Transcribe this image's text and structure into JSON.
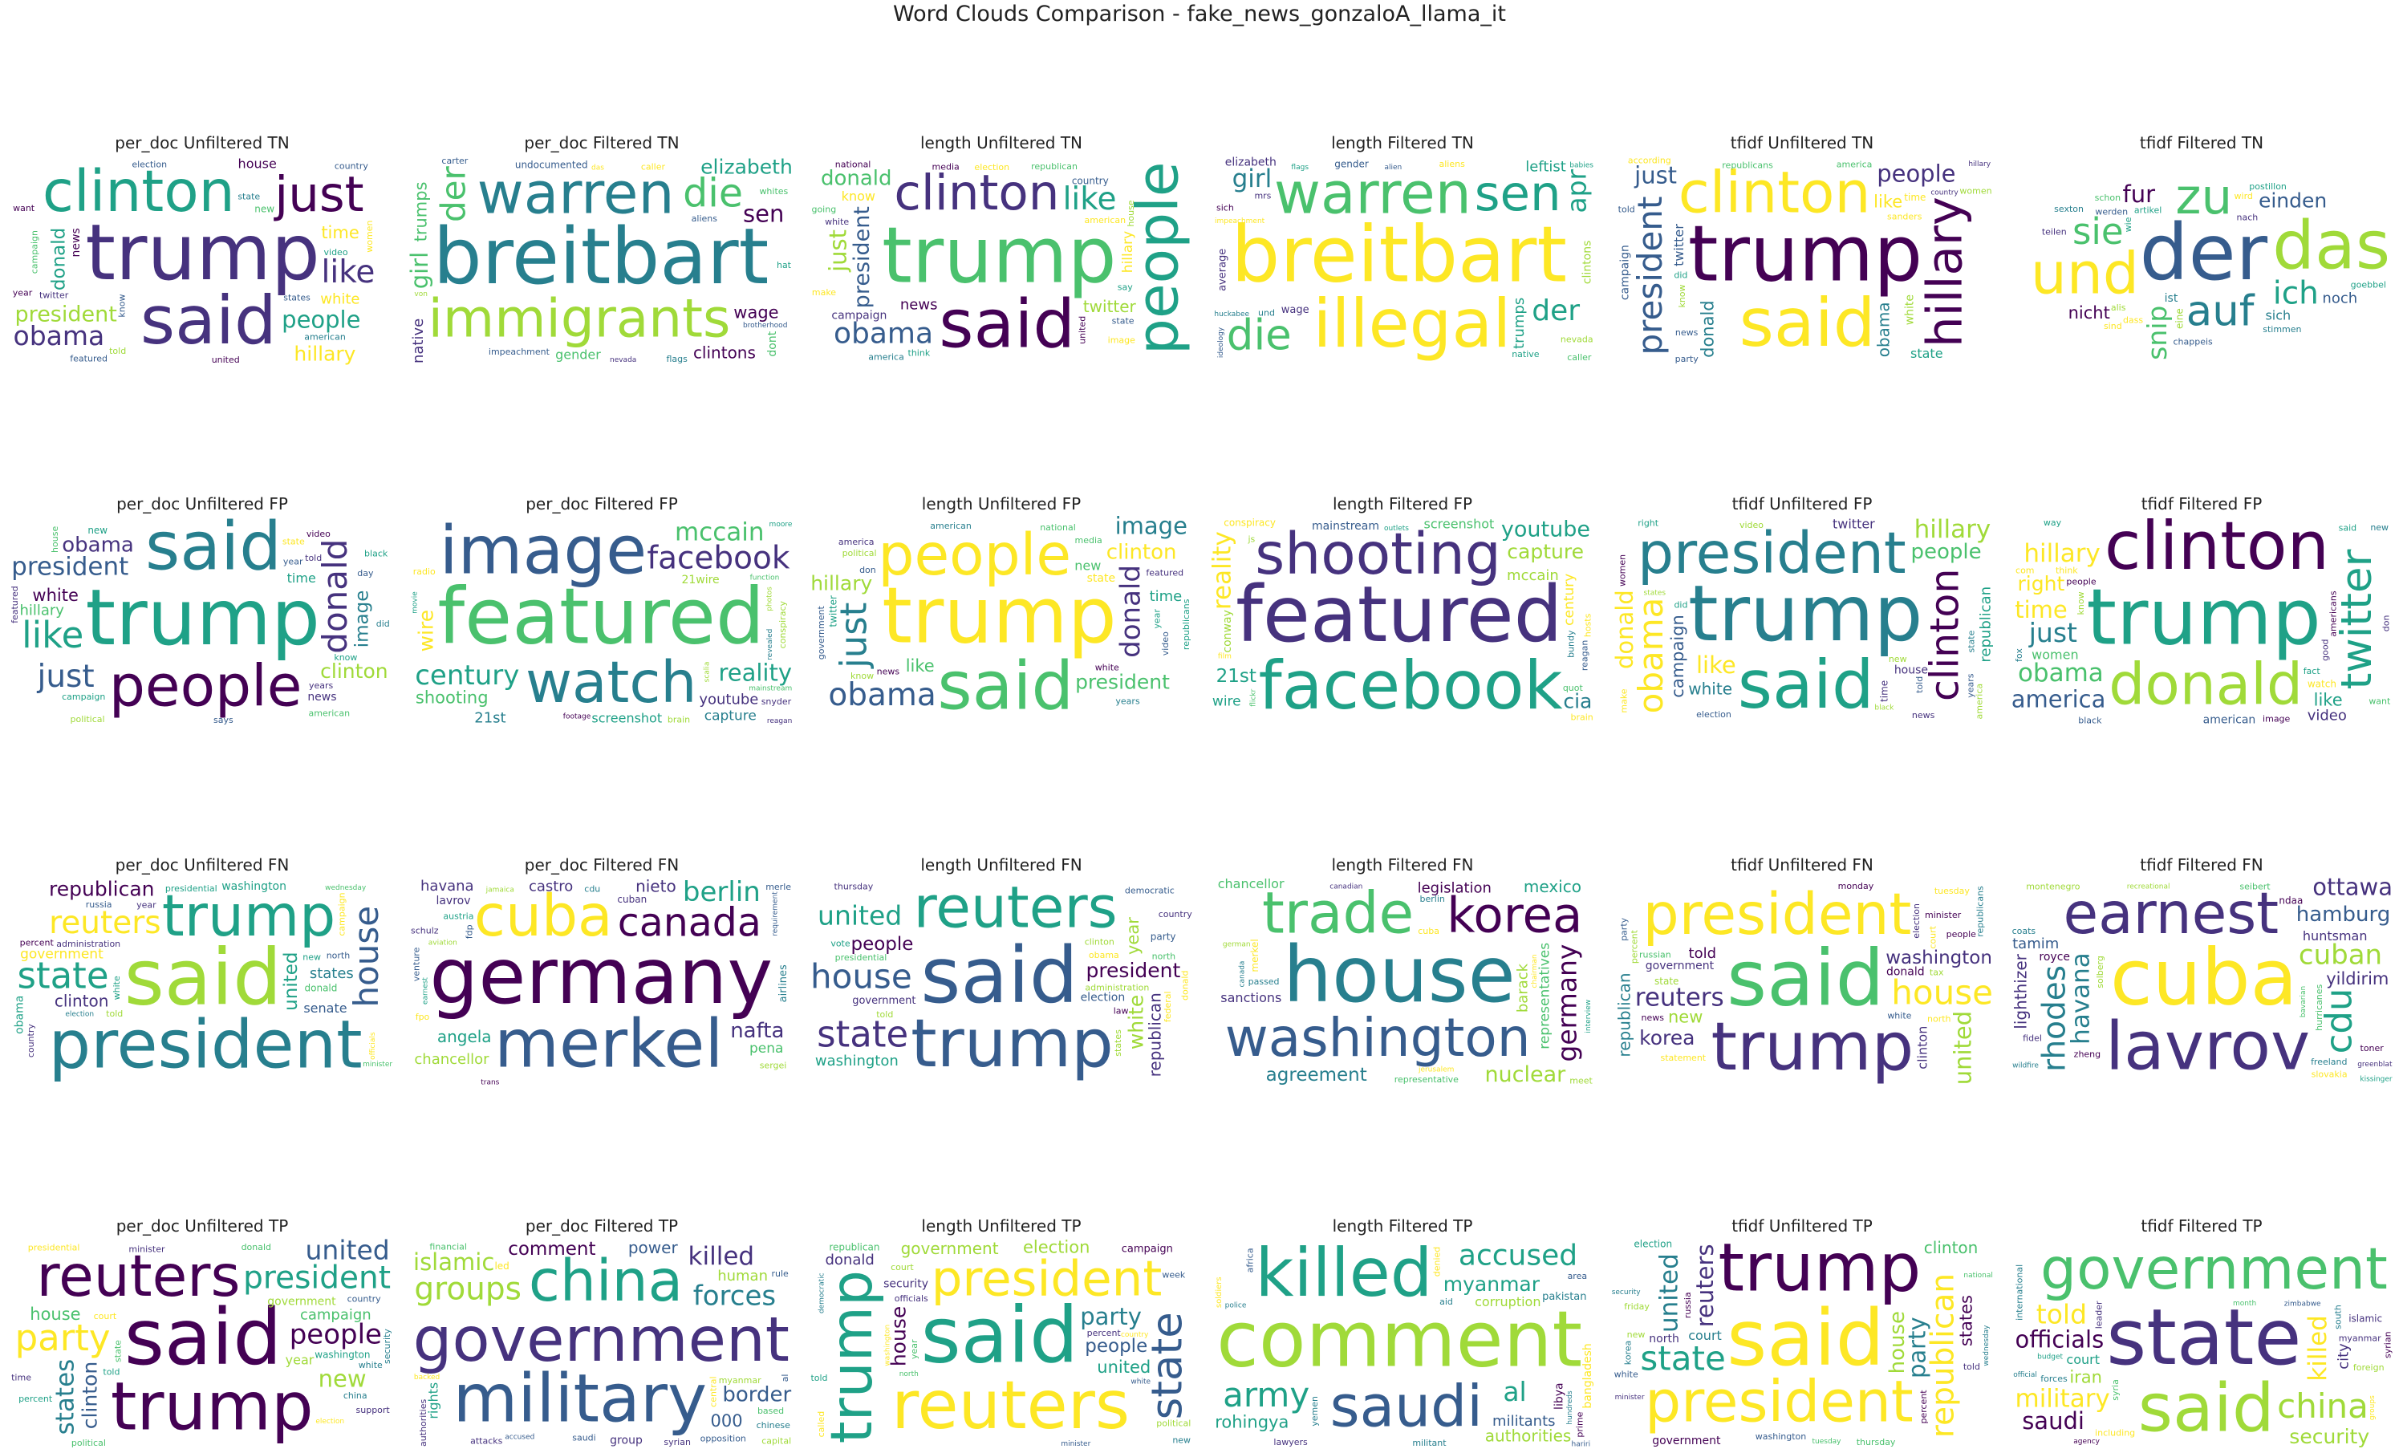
{
  "title": "Word Clouds Comparison - fake_news_gonzaloA_llama_it",
  "palette": [
    "#440154",
    "#46327e",
    "#365c8d",
    "#277f8e",
    "#1fa187",
    "#4ac16d",
    "#a0da39",
    "#fde725"
  ],
  "chart_data": [
    {
      "type": "wordcloud",
      "title": "per_doc Unfiltered TN",
      "words": [
        "trump",
        "said",
        "clinton",
        "just",
        "president",
        "people",
        "like",
        "obama",
        "donald",
        "hillary",
        "time",
        "white",
        "house",
        "news",
        "new",
        "states",
        "twitter",
        "state",
        "video",
        "campaign",
        "american",
        "featured",
        "country",
        "year",
        "know",
        "election",
        "united",
        "women",
        "told",
        "want"
      ]
    },
    {
      "type": "wordcloud",
      "title": "per_doc Filtered TN",
      "words": [
        "breitbart",
        "immigrants",
        "warren",
        "die",
        "der",
        "sen",
        "clintons",
        "wage",
        "girl",
        "elizabeth",
        "trumps",
        "native",
        "gender",
        "dont",
        "undocumented",
        "aliens",
        "caller",
        "hat",
        "impeachment",
        "nevada",
        "whites",
        "flags",
        "brotherhood",
        "carter",
        "das",
        "von"
      ]
    },
    {
      "type": "wordcloud",
      "title": "length Unfiltered TN",
      "words": [
        "trump",
        "said",
        "people",
        "clinton",
        "president",
        "obama",
        "like",
        "donald",
        "just",
        "twitter",
        "hillary",
        "news",
        "know",
        "campaign",
        "country",
        "american",
        "house",
        "state",
        "white",
        "election",
        "media",
        "republican",
        "national",
        "united",
        "say",
        "make",
        "think",
        "america",
        "going",
        "image"
      ]
    },
    {
      "type": "wordcloud",
      "title": "length Filtered TN",
      "words": [
        "breitbart",
        "illegal",
        "warren",
        "sen",
        "die",
        "der",
        "girl",
        "apr",
        "trumps",
        "average",
        "clintons",
        "leftist",
        "wage",
        "elizabeth",
        "gender",
        "mrs",
        "aliens",
        "native",
        "impeachment",
        "und",
        "nevada",
        "babies",
        "ideology",
        "brotherhood",
        "caller",
        "sich",
        "huckabee",
        "flags",
        "applause",
        "alien"
      ]
    },
    {
      "type": "wordcloud",
      "title": "tfidf Unfiltered TN",
      "words": [
        "trump",
        "said",
        "clinton",
        "hillary",
        "president",
        "people",
        "obama",
        "donald",
        "just",
        "twitter",
        "like",
        "white",
        "state",
        "campaign",
        "time",
        "sanders",
        "news",
        "republicans",
        "america",
        "women",
        "know",
        "according",
        "country",
        "told",
        "party",
        "did",
        "hillary"
      ]
    },
    {
      "type": "wordcloud",
      "title": "tfidf Filtered TN",
      "words": [
        "der",
        "das",
        "und",
        "zu",
        "auf",
        "sie",
        "ich",
        "snip",
        "fur",
        "einden",
        "nicht",
        "noch",
        "sich",
        "ist",
        "eine",
        "wird",
        "wie",
        "alis",
        "nach",
        "artikel",
        "dass",
        "postillon",
        "teilen",
        "stimmen",
        "werden",
        "schon",
        "chappeis",
        "sind",
        "sexton",
        "goebbel"
      ]
    },
    {
      "type": "wordcloud",
      "title": "per_doc Unfiltered FP",
      "words": [
        "trump",
        "said",
        "people",
        "president",
        "donald",
        "like",
        "just",
        "obama",
        "image",
        "clinton",
        "white",
        "hillary",
        "time",
        "news",
        "new",
        "years",
        "year",
        "day",
        "says",
        "state",
        "campaign",
        "told",
        "video",
        "did",
        "featured",
        "american",
        "house",
        "black",
        "know",
        "political"
      ]
    },
    {
      "type": "wordcloud",
      "title": "per_doc Filtered FP",
      "words": [
        "featured",
        "image",
        "watch",
        "facebook",
        "century",
        "reality",
        "mccain",
        "shooting",
        "youtube",
        "wire",
        "capture",
        "21st",
        "screenshot",
        "21wire",
        "mainstream",
        "conspiracy",
        "snyder",
        "brain",
        "footage",
        "scalia",
        "radio",
        "moore",
        "revealed",
        "function",
        "reagan",
        "photos",
        "movie"
      ]
    },
    {
      "type": "wordcloud",
      "title": "length Unfiltered FP",
      "words": [
        "trump",
        "said",
        "people",
        "president",
        "donald",
        "just",
        "obama",
        "clinton",
        "image",
        "hillary",
        "like",
        "time",
        "new",
        "state",
        "twitter",
        "year",
        "video",
        "news",
        "white",
        "featured",
        "american",
        "know",
        "media",
        "government",
        "republicans",
        "political",
        "national",
        "years",
        "don",
        "america"
      ]
    },
    {
      "type": "wordcloud",
      "title": "length Filtered FP",
      "words": [
        "featured",
        "facebook",
        "shooting",
        "capture",
        "youtube",
        "mccain",
        "reality",
        "century",
        "21st",
        "cia",
        "wire",
        "mainstream",
        "screenshot",
        "conway",
        "conspiracy",
        "brain",
        "quot",
        "bundy",
        "hosts",
        "reagan",
        "function",
        "flickr",
        "segment",
        "shooter",
        "outlets",
        "analysis",
        "film",
        "rich",
        "id",
        "js"
      ]
    },
    {
      "type": "wordcloud",
      "title": "tfidf Unfiltered FP",
      "words": [
        "trump",
        "said",
        "president",
        "clinton",
        "obama",
        "donald",
        "hillary",
        "people",
        "like",
        "white",
        "campaign",
        "republican",
        "twitter",
        "house",
        "time",
        "america",
        "state",
        "new",
        "video",
        "election",
        "women",
        "news",
        "right",
        "black",
        "make",
        "years",
        "told",
        "did",
        "states",
        "know"
      ]
    },
    {
      "type": "wordcloud",
      "title": "tfidf Filtered FP",
      "words": [
        "trump",
        "clinton",
        "donald",
        "obama",
        "twitter",
        "america",
        "hillary",
        "just",
        "time",
        "right",
        "like",
        "video",
        "women",
        "american",
        "watch",
        "people",
        "americans",
        "know",
        "image",
        "fact",
        "think",
        "black",
        "said",
        "good",
        "want",
        "don",
        "fox",
        "com",
        "way",
        "new"
      ]
    },
    {
      "type": "wordcloud",
      "title": "per_doc Unfiltered FN",
      "words": [
        "said",
        "president",
        "trump",
        "reuters",
        "house",
        "state",
        "republican",
        "government",
        "united",
        "clinton",
        "washington",
        "states",
        "senate",
        "obama",
        "donald",
        "administration",
        "north",
        "year",
        "told",
        "white",
        "election",
        "campaign",
        "percent",
        "russia",
        "new",
        "country",
        "presidential",
        "officials",
        "minister",
        "wednesday"
      ]
    },
    {
      "type": "wordcloud",
      "title": "per_doc Filtered FN",
      "words": [
        "germany",
        "merkel",
        "cuba",
        "canada",
        "berlin",
        "chancellor",
        "angela",
        "nafta",
        "havana",
        "nieto",
        "pena",
        "castro",
        "airlines",
        "lavrov",
        "cuban",
        "fdp",
        "austria",
        "sergei",
        "schulz",
        "earnest",
        "requirement",
        "cdu",
        "trans",
        "venture",
        "jamaica",
        "aviation",
        "fpo",
        "merle"
      ]
    },
    {
      "type": "wordcloud",
      "title": "length Unfiltered FN",
      "words": [
        "said",
        "trump",
        "reuters",
        "president",
        "house",
        "state",
        "republican",
        "united",
        "people",
        "white",
        "year",
        "washington",
        "government",
        "election",
        "party",
        "obama",
        "administration",
        "north",
        "federal",
        "told",
        "states",
        "vote",
        "democratic",
        "presidential",
        "clinton",
        "donald",
        "thursday",
        "country",
        "law"
      ]
    },
    {
      "type": "wordcloud",
      "title": "length Filtered FN",
      "words": [
        "house",
        "washington",
        "trade",
        "korea",
        "nuclear",
        "agreement",
        "sanctions",
        "germany",
        "legislation",
        "mexico",
        "representatives",
        "barack",
        "chancellor",
        "representative",
        "merkel",
        "jerusalem",
        "passed",
        "cuba",
        "berlin",
        "canada",
        "german",
        "canadian",
        "meet",
        "progress",
        "measure",
        "chairman",
        "introduced",
        "interview"
      ]
    },
    {
      "type": "wordcloud",
      "title": "tfidf Unfiltered FN",
      "words": [
        "said",
        "trump",
        "president",
        "reuters",
        "house",
        "washington",
        "republican",
        "government",
        "united",
        "korea",
        "new",
        "told",
        "clinton",
        "donald",
        "state",
        "percent",
        "election",
        "tax",
        "people",
        "statement",
        "court",
        "minister",
        "russian",
        "white",
        "north",
        "party",
        "monday",
        "tuesday",
        "republicans",
        "news"
      ]
    },
    {
      "type": "wordcloud",
      "title": "tfidf Filtered FN",
      "words": [
        "cuba",
        "lavrov",
        "earnest",
        "havana",
        "cuban",
        "cdu",
        "rhodes",
        "hamburg",
        "ottawa",
        "lighthizer",
        "yildirim",
        "tamim",
        "huntsman",
        "royce",
        "ndaa",
        "seibert",
        "montenegro",
        "freeland",
        "solberg",
        "slovakia",
        "bavarian",
        "recreational",
        "zheng",
        "hurricanes",
        "toner",
        "fidel",
        "greenblat",
        "kissinger",
        "wildfire",
        "coats"
      ]
    },
    {
      "type": "wordcloud",
      "title": "per_doc Unfiltered TP",
      "words": [
        "said",
        "trump",
        "reuters",
        "president",
        "people",
        "party",
        "states",
        "united",
        "new",
        "clinton",
        "house",
        "campaign",
        "year",
        "government",
        "washington",
        "state",
        "court",
        "white",
        "donald",
        "security",
        "told",
        "minister",
        "china",
        "country",
        "percent",
        "presidential",
        "support",
        "political",
        "election",
        "time"
      ]
    },
    {
      "type": "wordcloud",
      "title": "per_doc Filtered TP",
      "words": [
        "government",
        "military",
        "china",
        "groups",
        "forces",
        "islamic",
        "killed",
        "border",
        "comment",
        "power",
        "000",
        "human",
        "rights",
        "group",
        "led",
        "opposition",
        "myanmar",
        "based",
        "attacks",
        "saudi",
        "financial",
        "authorities",
        "syrian",
        "chinese",
        "accused",
        "capital",
        "central",
        "backed",
        "al",
        "rule"
      ]
    },
    {
      "type": "wordcloud",
      "title": "length Unfiltered TP",
      "words": [
        "said",
        "reuters",
        "trump",
        "president",
        "state",
        "people",
        "government",
        "united",
        "party",
        "house",
        "election",
        "donald",
        "campaign",
        "security",
        "republican",
        "political",
        "officials",
        "percent",
        "court",
        "week",
        "north",
        "new",
        "told",
        "democratic",
        "minister",
        "called",
        "washington",
        "white",
        "country",
        "year"
      ]
    },
    {
      "type": "wordcloud",
      "title": "length Filtered TP",
      "words": [
        "comment",
        "killed",
        "saudi",
        "myanmar",
        "army",
        "accused",
        "authorities",
        "al",
        "militants",
        "corruption",
        "rohingya",
        "bangladesh",
        "pakistan",
        "libya",
        "soldiers",
        "lawyers",
        "afghanistan",
        "yemen",
        "prime",
        "aid",
        "africa",
        "militant",
        "denied",
        "area",
        "protests",
        "humanitarian",
        "hundreds",
        "police",
        "hariri",
        "opposition"
      ]
    },
    {
      "type": "wordcloud",
      "title": "tfidf Unfiltered TP",
      "words": [
        "said",
        "trump",
        "president",
        "republican",
        "state",
        "reuters",
        "united",
        "house",
        "party",
        "clinton",
        "states",
        "government",
        "court",
        "north",
        "election",
        "new",
        "told",
        "percent",
        "russia",
        "washington",
        "korea",
        "friday",
        "thursday",
        "tuesday",
        "wednesday",
        "minister",
        "security",
        "statement",
        "national",
        "white"
      ]
    },
    {
      "type": "wordcloud",
      "title": "tfidf Filtered TP",
      "words": [
        "state",
        "said",
        "government",
        "military",
        "china",
        "officials",
        "killed",
        "told",
        "saudi",
        "security",
        "iran",
        "city",
        "court",
        "myanmar",
        "islamic",
        "forces",
        "including",
        "foreign",
        "leader",
        "syria",
        "south",
        "international",
        "agency",
        "month",
        "budget",
        "syrian",
        "zimbabwe",
        "hurricanes",
        "official",
        "groups"
      ]
    }
  ]
}
